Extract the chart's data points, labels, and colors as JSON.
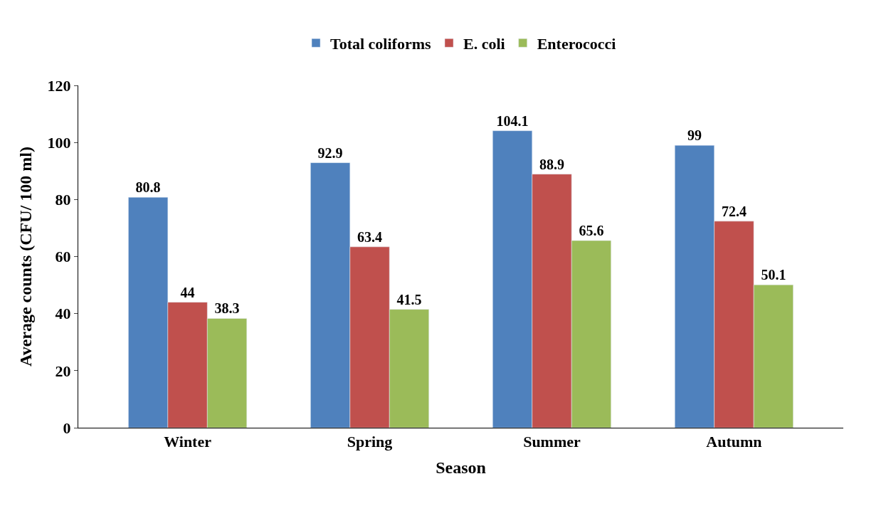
{
  "chart_data": {
    "type": "bar",
    "xlabel": "Season",
    "ylabel": "Average counts (CFU/ 100 ml)",
    "categories": [
      "Winter",
      "Spring",
      "Summer",
      "Autumn"
    ],
    "series": [
      {
        "name": "Total coliforms",
        "color": "#4f81bd",
        "values": [
          80.8,
          92.9,
          104.1,
          99
        ]
      },
      {
        "name": "E. coli",
        "color": "#c0504d",
        "values": [
          44,
          63.4,
          88.9,
          72.4
        ]
      },
      {
        "name": "Enterococci",
        "color": "#9bbb59",
        "values": [
          38.3,
          41.5,
          65.6,
          50.1
        ]
      }
    ],
    "ylim": [
      0,
      120
    ],
    "yticks": [
      0,
      20,
      40,
      60,
      80,
      100,
      120
    ],
    "data_labels": true,
    "legend": "top"
  }
}
